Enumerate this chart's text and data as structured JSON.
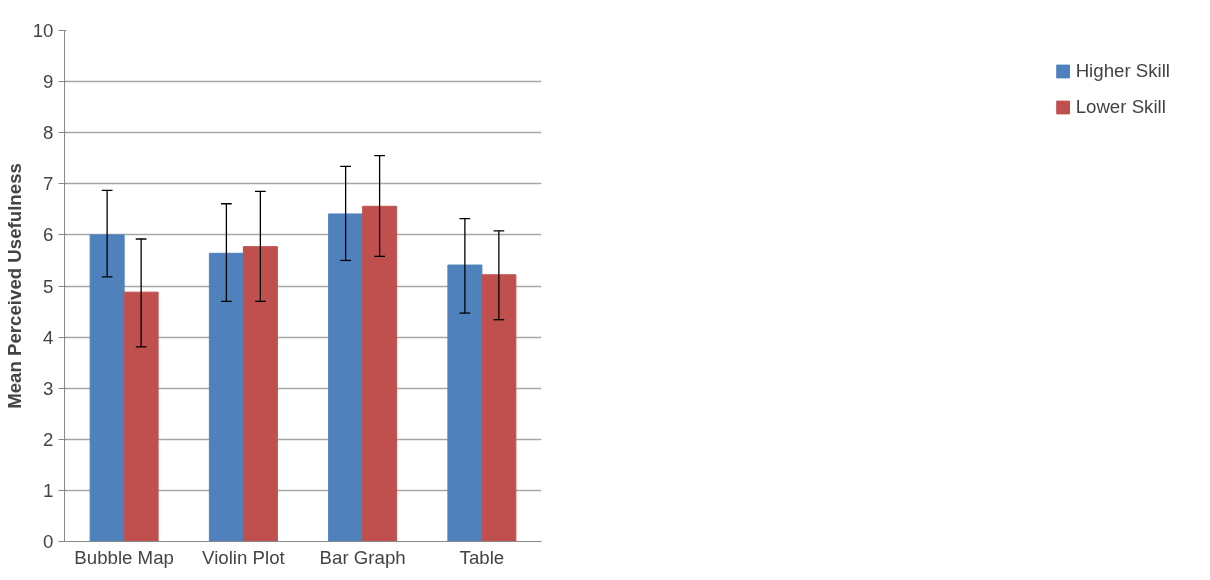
{
  "chart_data": {
    "type": "bar",
    "ylabel": "Mean Perceived Usefulness",
    "categories": [
      "Bubble Map",
      "Violin Plot",
      "Bar Graph",
      "Table"
    ],
    "series": [
      {
        "name": "Higher Skill",
        "color": "#4f81bd",
        "values": [
          6.0,
          5.64,
          6.41,
          5.41
        ],
        "errors": [
          [
            5.18,
            6.87
          ],
          [
            4.7,
            6.61
          ],
          [
            5.5,
            7.34
          ],
          [
            4.47,
            6.32
          ]
        ]
      },
      {
        "name": "Lower Skill",
        "color": "#c0504d",
        "values": [
          4.88,
          5.77,
          6.56,
          5.22
        ],
        "errors": [
          [
            3.81,
            5.92
          ],
          [
            4.7,
            6.85
          ],
          [
            5.58,
            7.55
          ],
          [
            4.34,
            6.08
          ]
        ]
      }
    ],
    "ylim": [
      0,
      10
    ],
    "yticks": [
      0,
      1,
      2,
      3,
      4,
      5,
      6,
      7,
      8,
      9,
      10
    ],
    "grid": "y",
    "legend": "right"
  }
}
